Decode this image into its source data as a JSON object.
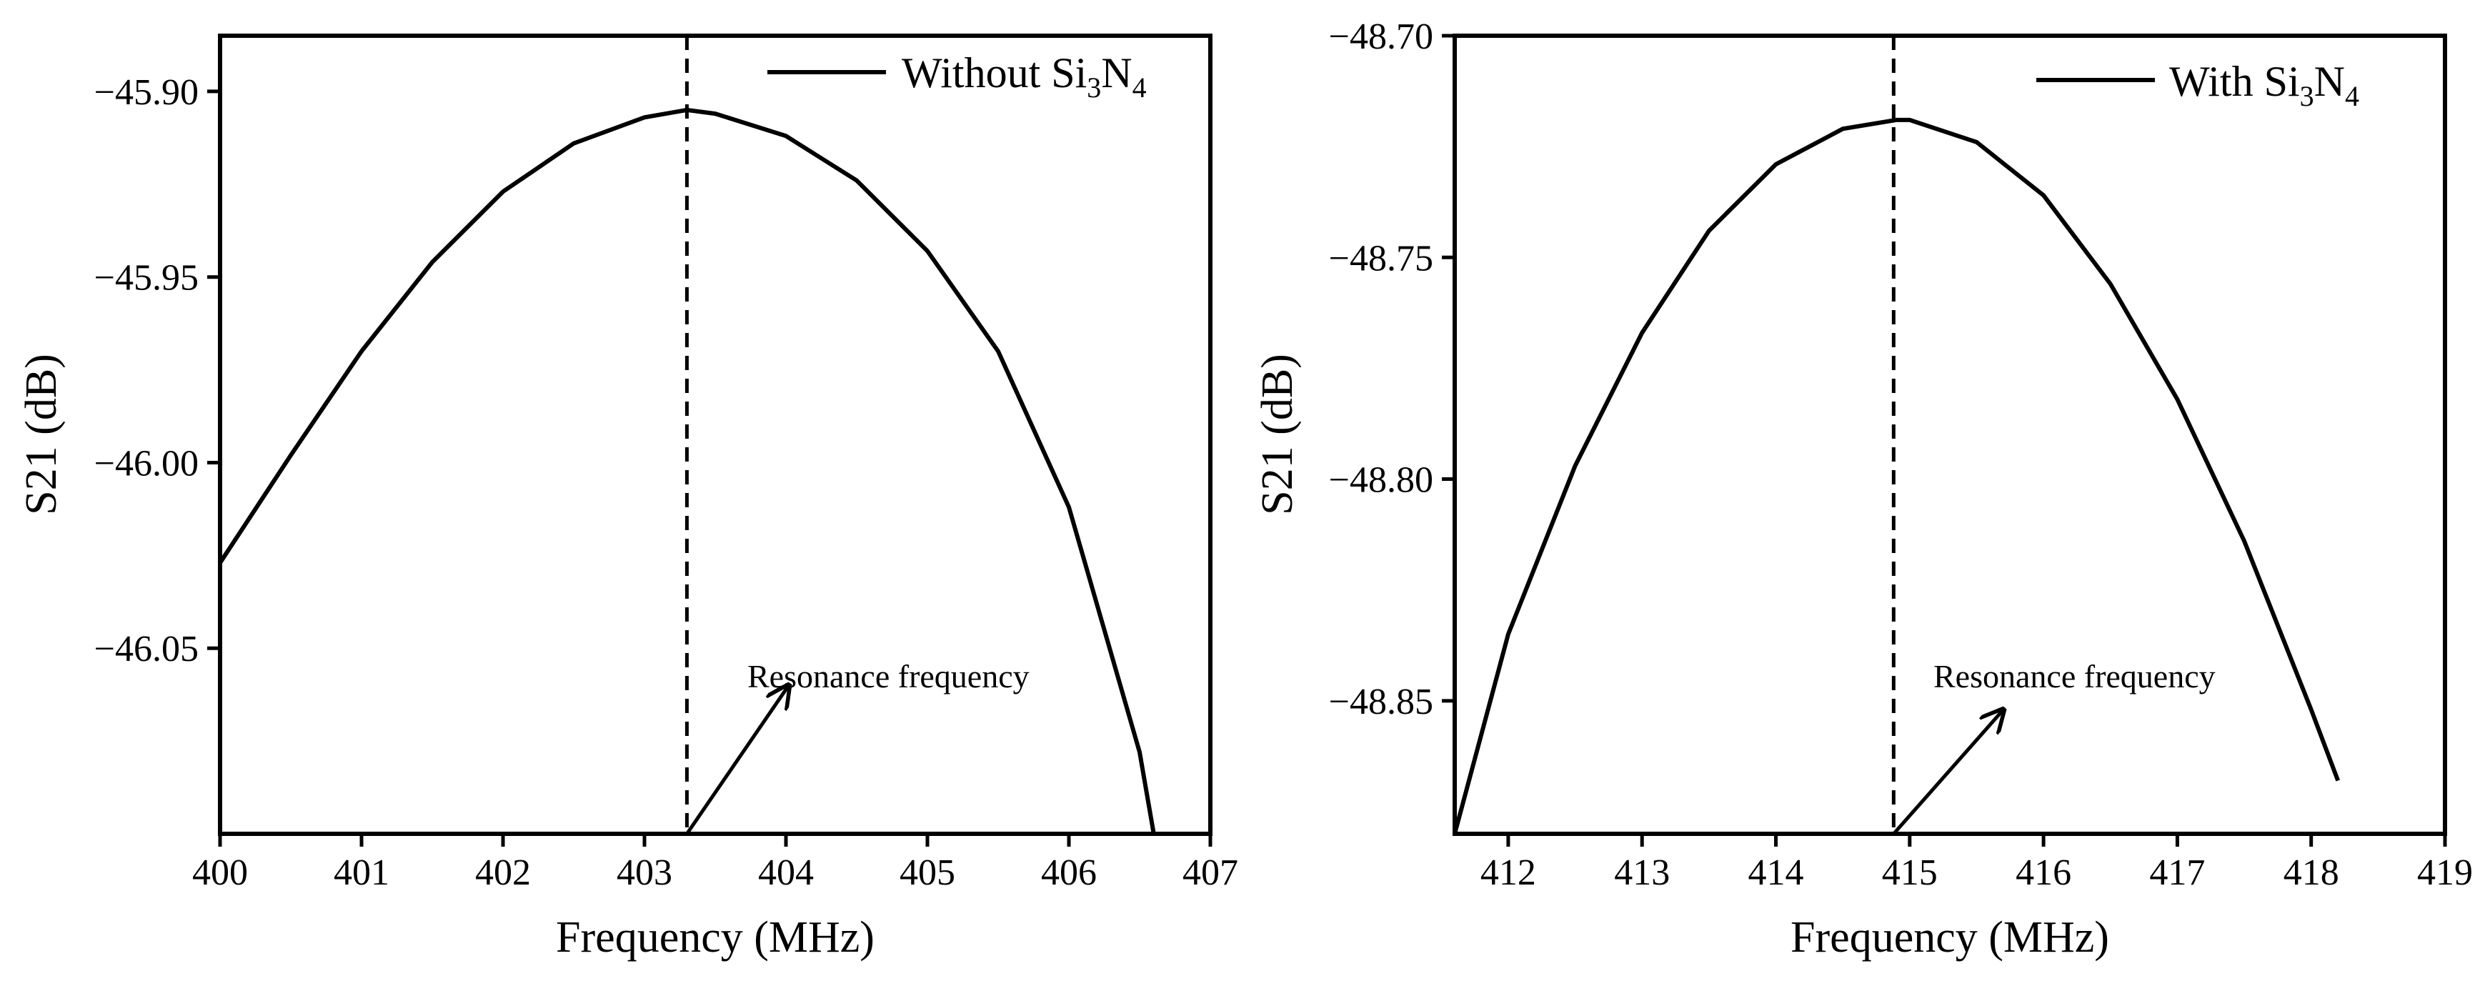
{
  "chart_data": [
    {
      "type": "line",
      "xlabel": "Frequency (MHz)",
      "ylabel": "S21 (dB)",
      "xlim": [
        400,
        407
      ],
      "ylim": [
        -46.1,
        -45.885
      ],
      "xticks": [
        400,
        401,
        402,
        403,
        404,
        405,
        406,
        407
      ],
      "xtick_labels": [
        "400",
        "401",
        "402",
        "403",
        "404",
        "405",
        "406",
        "407"
      ],
      "yticks": [
        -45.9,
        -45.95,
        -46.0,
        -46.05
      ],
      "ytick_labels": [
        "−45.90",
        "−45.95",
        "−46.00",
        "−46.05"
      ],
      "legend": {
        "line_label": "Without Si",
        "sub1": "3",
        "mid": "N",
        "sub2": "4",
        "placement": "top-right"
      },
      "series": [
        {
          "name": "Without Si3N4",
          "x": [
            400.0,
            400.5,
            401.0,
            401.5,
            402.0,
            402.5,
            403.0,
            403.3,
            403.5,
            404.0,
            404.5,
            405.0,
            405.5,
            406.0,
            406.5,
            406.6
          ],
          "y": [
            -46.027,
            -45.998,
            -45.97,
            -45.946,
            -45.927,
            -45.914,
            -45.907,
            -45.905,
            -45.906,
            -45.912,
            -45.924,
            -45.943,
            -45.97,
            -46.012,
            -46.078,
            -46.1
          ]
        }
      ],
      "marker_line": {
        "x": 403.3,
        "style": "dashed"
      },
      "annotation": {
        "text": "Resonance frequency",
        "arrow_from": [
          403.3,
          -46.1
        ],
        "arrow_to": [
          404.02,
          -46.06
        ]
      }
    },
    {
      "type": "line",
      "xlabel": "Frequency (MHz)",
      "ylabel": "S21 (dB)",
      "xlim": [
        411.6,
        419
      ],
      "ylim": [
        -48.88,
        -48.7
      ],
      "xticks": [
        412,
        413,
        414,
        415,
        416,
        417,
        418,
        419
      ],
      "xtick_labels": [
        "412",
        "413",
        "414",
        "415",
        "416",
        "417",
        "418",
        "419"
      ],
      "yticks": [
        -48.7,
        -48.75,
        -48.8,
        -48.85
      ],
      "ytick_labels": [
        "−48.70",
        "−48.75",
        "−48.80",
        "−48.85"
      ],
      "legend": {
        "line_label": "With Si",
        "sub1": "3",
        "mid": "N",
        "sub2": "4",
        "placement": "top-right"
      },
      "series": [
        {
          "name": "With Si3N4",
          "x": [
            411.6,
            412.0,
            412.5,
            413.0,
            413.5,
            414.0,
            414.5,
            414.9,
            415.0,
            415.5,
            416.0,
            416.5,
            417.0,
            417.5,
            418.0,
            418.2
          ],
          "y": [
            -48.88,
            -48.835,
            -48.797,
            -48.767,
            -48.744,
            -48.729,
            -48.721,
            -48.719,
            -48.719,
            -48.724,
            -48.736,
            -48.756,
            -48.782,
            -48.814,
            -48.852,
            -48.868
          ]
        }
      ],
      "marker_line": {
        "x": 414.88,
        "style": "dashed"
      },
      "annotation": {
        "text": "Resonance frequency",
        "arrow_from": [
          414.88,
          -48.88
        ],
        "arrow_to": [
          415.7,
          -48.852
        ]
      }
    }
  ]
}
